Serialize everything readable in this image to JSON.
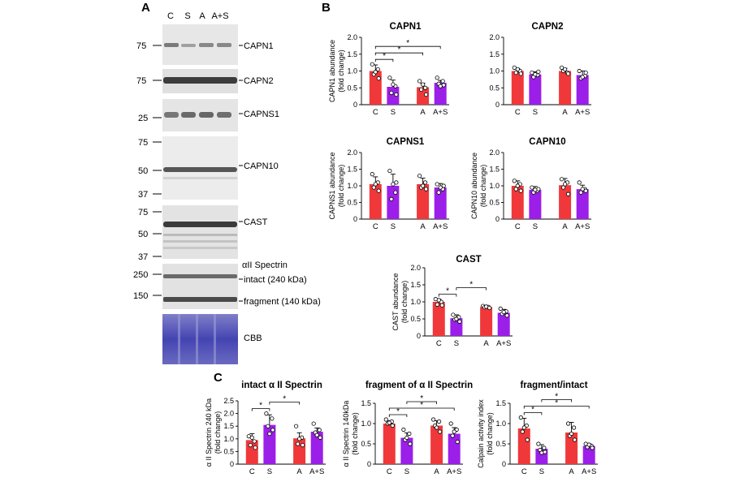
{
  "panel_labels": {
    "a": "A",
    "b": "B",
    "c": "C"
  },
  "colors": {
    "control": "#f0383a",
    "treated": "#9b1fe8",
    "blot": "#6d6d6d",
    "cbb": "#3a3aa8"
  },
  "blot": {
    "lanes": [
      "C",
      "S",
      "A",
      "A+S"
    ],
    "rows": [
      {
        "label": "CAPN1",
        "markers": [
          "75"
        ]
      },
      {
        "label": "CAPN2",
        "markers": [
          "75"
        ]
      },
      {
        "label": "CAPNS1",
        "markers": [
          "25"
        ]
      },
      {
        "label": "CAPN10",
        "markers": [
          "75",
          "50",
          "37"
        ]
      },
      {
        "label": "CAST",
        "markers": [
          "75",
          "50",
          "37"
        ]
      },
      {
        "label": "αII Spectrin",
        "sublabels": [
          "intact (240 kDa)",
          "fragment (140 kDa)"
        ],
        "markers": [
          "250",
          "150"
        ]
      },
      {
        "label": "CBB",
        "markers": []
      }
    ]
  },
  "chart_data": [
    {
      "type": "bar",
      "title": "CAPN1",
      "ylabel": "CAPN1 abundance (fold change)",
      "categories": [
        "C",
        "S",
        "A",
        "A+S"
      ],
      "values": [
        1.0,
        0.53,
        0.52,
        0.65
      ],
      "errors": [
        0.18,
        0.2,
        0.12,
        0.07
      ],
      "ylim": [
        0,
        2.0
      ],
      "yticks": [
        0,
        0.5,
        1.0,
        1.5,
        2.0
      ],
      "points": [
        [
          1.2,
          1.05,
          0.9,
          0.78,
          0.97
        ],
        [
          0.8,
          0.55,
          0.35,
          0.3,
          0.6
        ],
        [
          0.7,
          0.5,
          0.45,
          0.3,
          0.6
        ],
        [
          0.8,
          0.7,
          0.62,
          0.58,
          0.55
        ]
      ],
      "significance": [
        {
          "from": 0,
          "to": 1,
          "label": "*"
        },
        {
          "from": 0,
          "to": 2,
          "label": "*"
        },
        {
          "from": 0,
          "to": 3,
          "label": "*"
        }
      ]
    },
    {
      "type": "bar",
      "title": "CAPN2",
      "ylabel": "",
      "categories": [
        "C",
        "S",
        "A",
        "A+S"
      ],
      "values": [
        1.0,
        0.9,
        1.0,
        0.88
      ],
      "errors": [
        0.08,
        0.08,
        0.08,
        0.12
      ],
      "ylim": [
        0,
        2.0
      ],
      "yticks": [
        0,
        0.5,
        1.0,
        1.5,
        2.0
      ],
      "points": [
        [
          1.1,
          1.0,
          0.95,
          0.92,
          1.05
        ],
        [
          0.95,
          0.88,
          0.82,
          0.98,
          0.9
        ],
        [
          1.1,
          0.95,
          1.0,
          0.92,
          1.05
        ],
        [
          1.0,
          0.85,
          0.78,
          0.95,
          0.82
        ]
      ],
      "significance": []
    },
    {
      "type": "bar",
      "title": "CAPNS1",
      "ylabel": "CAPNS1 abundance (fold change)",
      "categories": [
        "C",
        "S",
        "A",
        "A+S"
      ],
      "values": [
        1.05,
        1.0,
        1.05,
        0.95
      ],
      "errors": [
        0.22,
        0.35,
        0.18,
        0.12
      ],
      "ylim": [
        0,
        2.0
      ],
      "yticks": [
        0,
        0.5,
        1.0,
        1.5,
        2.0
      ],
      "points": [
        [
          1.35,
          1.1,
          0.95,
          0.85,
          1.05
        ],
        [
          1.45,
          0.8,
          0.6,
          1.1,
          1.05
        ],
        [
          1.3,
          1.1,
          0.95,
          0.9,
          1.0
        ],
        [
          1.05,
          0.9,
          0.8,
          1.0,
          0.95
        ]
      ],
      "significance": []
    },
    {
      "type": "bar",
      "title": "CAPN10",
      "ylabel": "CAPN10 abundance (fold change)",
      "categories": [
        "C",
        "S",
        "A",
        "A+S"
      ],
      "values": [
        1.0,
        0.88,
        1.02,
        0.9
      ],
      "errors": [
        0.15,
        0.1,
        0.2,
        0.12
      ],
      "ylim": [
        0,
        2.0
      ],
      "yticks": [
        0,
        0.5,
        1.0,
        1.5,
        2.0
      ],
      "points": [
        [
          1.15,
          1.05,
          0.9,
          0.85,
          1.0
        ],
        [
          0.95,
          0.85,
          0.8,
          0.9,
          0.88
        ],
        [
          1.2,
          1.1,
          0.95,
          0.75,
          1.05
        ],
        [
          1.1,
          0.9,
          0.8,
          0.85,
          0.9
        ]
      ],
      "significance": []
    },
    {
      "type": "bar",
      "title": "CAST",
      "ylabel": "CAST abundance (fold change)",
      "categories": [
        "C",
        "S",
        "A",
        "A+S"
      ],
      "values": [
        1.0,
        0.52,
        0.85,
        0.68
      ],
      "errors": [
        0.08,
        0.1,
        0.05,
        0.1
      ],
      "ylim": [
        0,
        2.0
      ],
      "yticks": [
        0,
        0.5,
        1.0,
        1.5,
        2.0
      ],
      "points": [
        [
          1.08,
          1.0,
          0.92,
          0.9,
          1.05
        ],
        [
          0.62,
          0.55,
          0.48,
          0.42,
          0.5
        ],
        [
          0.88,
          0.85,
          0.84,
          0.82,
          0.86
        ],
        [
          0.8,
          0.72,
          0.65,
          0.6,
          0.7
        ]
      ],
      "significance": [
        {
          "from": 0,
          "to": 1,
          "label": "*"
        },
        {
          "from": 1,
          "to": 2,
          "label": "*"
        }
      ]
    },
    {
      "type": "bar",
      "title": "intact α II Spectrin",
      "ylabel": "α II Spectrin 240 kDa (fold change)",
      "categories": [
        "C",
        "S",
        "A",
        "A+S"
      ],
      "values": [
        0.95,
        1.55,
        1.02,
        1.28
      ],
      "errors": [
        0.25,
        0.4,
        0.22,
        0.15
      ],
      "ylim": [
        0,
        2.5
      ],
      "yticks": [
        0,
        0.5,
        1.0,
        1.5,
        2.0,
        2.5
      ],
      "points": [
        [
          1.1,
          0.9,
          0.75,
          0.65,
          1.05
        ],
        [
          2.0,
          1.8,
          1.5,
          1.35,
          1.2
        ],
        [
          1.5,
          1.05,
          0.8,
          0.75,
          1.0
        ],
        [
          1.6,
          1.35,
          1.25,
          1.05,
          1.15
        ]
      ],
      "significance": [
        {
          "from": 0,
          "to": 1,
          "label": "*"
        },
        {
          "from": 1,
          "to": 2,
          "label": "*"
        }
      ]
    },
    {
      "type": "bar",
      "title": "fragment of α II Spectrin",
      "ylabel": "α II Spectrin 140kDa (fold change)",
      "categories": [
        "C",
        "S",
        "A",
        "A+S"
      ],
      "values": [
        1.0,
        0.65,
        0.95,
        0.75
      ],
      "errors": [
        0.07,
        0.12,
        0.12,
        0.15
      ],
      "ylim": [
        0,
        1.5
      ],
      "yticks": [
        0,
        0.5,
        1.0,
        1.5
      ],
      "points": [
        [
          1.1,
          1.05,
          1.0,
          0.95,
          1.02
        ],
        [
          0.85,
          0.75,
          0.6,
          0.5,
          0.65
        ],
        [
          1.1,
          1.05,
          0.95,
          0.8,
          0.9
        ],
        [
          1.0,
          0.85,
          0.7,
          0.55,
          0.8
        ]
      ],
      "significance": [
        {
          "from": 0,
          "to": 1,
          "label": "*"
        },
        {
          "from": 0,
          "to": 3,
          "label": "*"
        },
        {
          "from": 1,
          "to": 2,
          "label": "*"
        }
      ]
    },
    {
      "type": "bar",
      "title": "fragment/intact",
      "ylabel": "Calpain activity index (fold change)",
      "categories": [
        "C",
        "S",
        "A",
        "A+S"
      ],
      "values": [
        0.88,
        0.38,
        0.78,
        0.45
      ],
      "errors": [
        0.25,
        0.1,
        0.25,
        0.05
      ],
      "ylim": [
        0,
        1.5
      ],
      "yticks": [
        0,
        0.5,
        1.0,
        1.5
      ],
      "points": [
        [
          1.15,
          0.95,
          0.8,
          0.6,
          0.9
        ],
        [
          0.5,
          0.4,
          0.35,
          0.3,
          0.28
        ],
        [
          1.0,
          0.9,
          0.7,
          0.6,
          0.75
        ],
        [
          0.5,
          0.45,
          0.42,
          0.4,
          0.48
        ]
      ],
      "significance": [
        {
          "from": 0,
          "to": 1,
          "label": "*"
        },
        {
          "from": 0,
          "to": 3,
          "label": "*"
        },
        {
          "from": 1,
          "to": 2,
          "label": "*"
        }
      ]
    }
  ]
}
